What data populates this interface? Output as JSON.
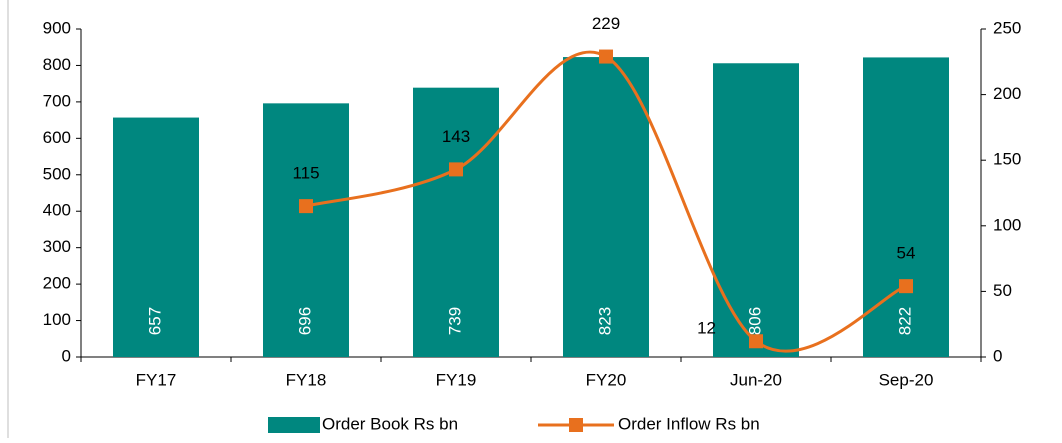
{
  "chart_data": {
    "type": "bar",
    "categories": [
      "FY17",
      "FY18",
      "FY19",
      "FY20",
      "Jun-20",
      "Sep-20"
    ],
    "series": [
      {
        "name": "Order Book Rs bn",
        "type": "bar",
        "color": "#00877f",
        "values": [
          657,
          696,
          739,
          823,
          806,
          822
        ]
      },
      {
        "name": "Order Inflow Rs bn",
        "type": "line",
        "axis": "y2",
        "color": "#e8701e",
        "values": [
          null,
          115,
          143,
          229,
          12,
          54
        ]
      }
    ],
    "ylim": [
      0,
      900
    ],
    "yticks": [
      0,
      100,
      200,
      300,
      400,
      500,
      600,
      700,
      800,
      900
    ],
    "y2lim": [
      0,
      250
    ],
    "y2ticks": [
      0,
      50,
      100,
      150,
      200,
      250
    ],
    "grid": false,
    "legend": "bottom"
  }
}
